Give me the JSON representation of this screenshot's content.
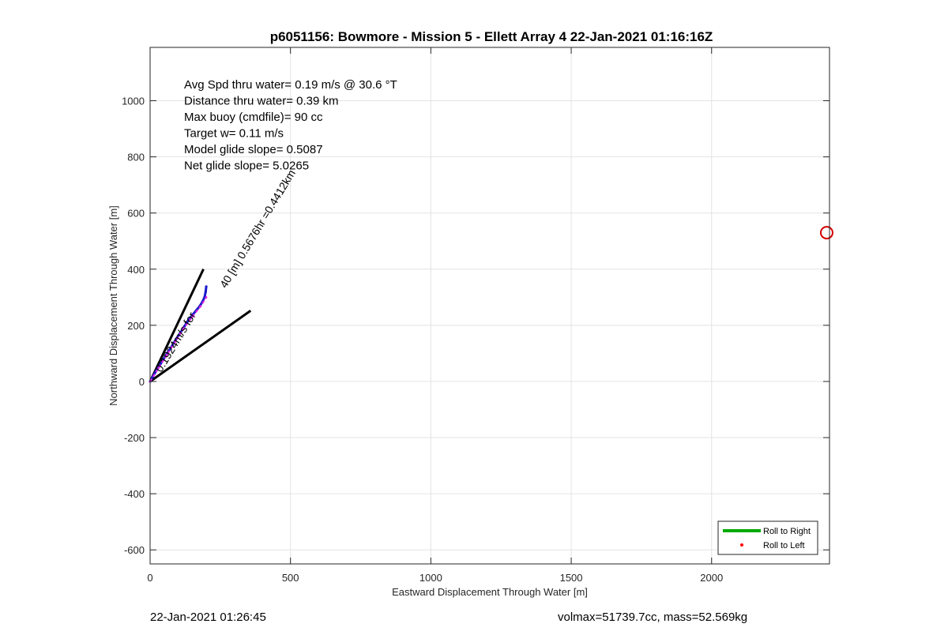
{
  "footer": {
    "left": "22-Jan-2021 01:26:45",
    "right": "volmax=51739.7cc, mass=52.569kg"
  },
  "chart_data": {
    "type": "line",
    "title": "p6051156: Bowmore - Mission 5 - Ellett Array 4 22-Jan-2021 01:16:16Z",
    "xlabel": "Eastward Displacement Through Water [m]",
    "ylabel": "Northward Displacement Through Water [m]",
    "xlim": [
      0,
      2420
    ],
    "ylim": [
      -650,
      1190
    ],
    "xticks": [
      0,
      500,
      1000,
      1500,
      2000
    ],
    "yticks": [
      -600,
      -400,
      -200,
      0,
      200,
      400,
      600,
      800,
      1000
    ],
    "xtick_labels": [
      "0",
      "500",
      "1000",
      "1500",
      "2000"
    ],
    "ytick_labels": [
      "-600",
      "-400",
      "-200",
      "0",
      "200",
      "400",
      "600",
      "800",
      "1000"
    ],
    "grid": true,
    "stats_text": [
      "Avg Spd thru water=  0.19 m/s @  30.6 °T",
      "Distance thru water=  0.39 km",
      "Max buoy (cmdfile)= 90 cc",
      "Target w= 0.11 m/s",
      "Model glide slope= 0.5087",
      "Net glide slope= 5.0265"
    ],
    "annotations": [
      {
        "text": "40 [m] 0.5676hr =0.4412km",
        "x": 270,
        "y": 330,
        "angle_deg": -59
      },
      {
        "text": "0.1924m/s for",
        "x": 40,
        "y": 30,
        "angle_deg": -59
      }
    ],
    "cone_lines": [
      {
        "x": [
          0,
          190
        ],
        "y": [
          0,
          400
        ],
        "color": "#000000"
      },
      {
        "x": [
          0,
          358
        ],
        "y": [
          0,
          252
        ],
        "color": "#000000"
      }
    ],
    "series": [
      {
        "color": "#1a1acc",
        "x": [
          0,
          10,
          22,
          35,
          48,
          62,
          78,
          92,
          108,
          122,
          138,
          152,
          166,
          178,
          187,
          194,
          198,
          200
        ],
        "y": [
          0,
          18,
          38,
          58,
          80,
          102,
          126,
          150,
          174,
          196,
          220,
          238,
          255,
          270,
          285,
          300,
          320,
          338
        ]
      },
      {
        "color": "#e020e0",
        "x": [
          0,
          30,
          60,
          90,
          120,
          150,
          180,
          200
        ],
        "y": [
          0,
          48,
          95,
          142,
          190,
          230,
          268,
          300
        ]
      }
    ],
    "markers": [
      {
        "shape": "circle",
        "x": 2410,
        "y": 530,
        "color": "#d40000"
      }
    ],
    "legend": {
      "position": "bottom-right",
      "entries": [
        {
          "label": "Roll to Right",
          "color": "#00aa00",
          "style": "line"
        },
        {
          "label": "Roll to Left",
          "color": "#ff0000",
          "style": "dot"
        }
      ]
    }
  }
}
